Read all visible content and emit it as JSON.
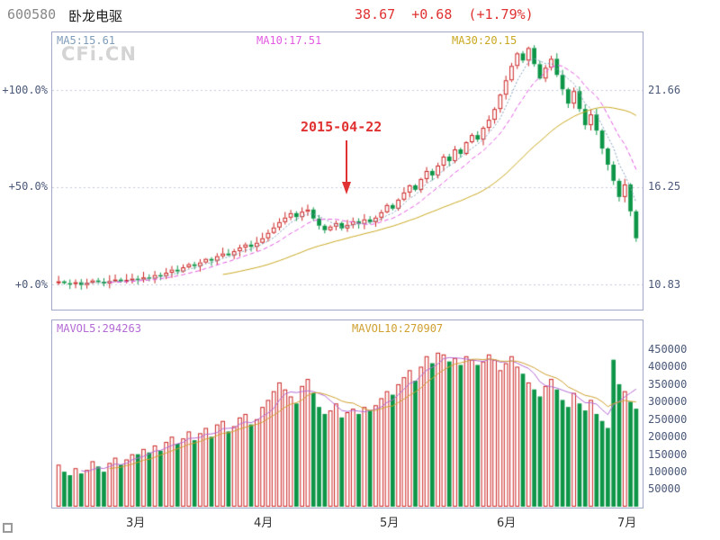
{
  "header": {
    "code": "600580",
    "name": "卧龙电驱",
    "quote": "38.67  +0.68  (+1.79%)"
  },
  "watermark": "CFi.CN",
  "chart_data": {
    "type": "candlestick+volume",
    "price_panel": {
      "ma_labels": [
        {
          "text": "MA5:15.61",
          "color": "#7f9db9"
        },
        {
          "text": "MA10:17.51",
          "color": "#e259e2"
        },
        {
          "text": "MA30:20.15",
          "color": "#c9a820"
        }
      ],
      "left_axis": [
        "+100.0%",
        "+50.0%",
        "+0.0%"
      ],
      "right_axis": [
        "21.66",
        "16.25",
        "10.83"
      ],
      "gridline_prices": [
        21.66,
        16.245,
        10.83
      ],
      "baseline_price": 10.83,
      "annotation": {
        "text": "2015-04-22",
        "day_index": 51,
        "color": "#e03232"
      }
    },
    "volume_panel": {
      "ma_labels": [
        {
          "text": "MAVOL5:294263",
          "color": "#b36ad4"
        },
        {
          "text": "MAVOL10:270907",
          "color": "#cf9f2f"
        }
      ],
      "right_axis": [
        "450000",
        "400000",
        "350000",
        "300000",
        "250000",
        "200000",
        "150000",
        "100000",
        "50000"
      ],
      "axis_top_value": 450000
    },
    "x_axis": {
      "month_labels": [
        "3月",
        "4月",
        "5月",
        "6月",
        "7月"
      ],
      "month_start_indices": [
        14,
        36,
        57,
        77,
        98
      ]
    },
    "candles": {
      "closes": [
        11.0,
        10.9,
        10.85,
        10.95,
        10.8,
        10.92,
        11.05,
        10.98,
        10.88,
        11.02,
        11.1,
        11.0,
        11.08,
        11.15,
        11.1,
        11.22,
        11.15,
        11.35,
        11.3,
        11.48,
        11.65,
        11.55,
        11.78,
        11.95,
        11.85,
        12.05,
        12.25,
        12.15,
        12.4,
        12.55,
        12.45,
        12.68,
        12.88,
        13.05,
        12.92,
        13.15,
        13.4,
        13.7,
        14.0,
        14.3,
        14.55,
        14.8,
        14.58,
        14.88,
        15.0,
        14.5,
        14.1,
        13.85,
        14.05,
        14.25,
        13.95,
        14.15,
        14.35,
        14.2,
        14.45,
        14.3,
        14.55,
        14.85,
        15.25,
        15.05,
        15.55,
        15.95,
        16.35,
        16.1,
        16.7,
        17.15,
        16.9,
        17.45,
        17.95,
        17.7,
        18.35,
        18.1,
        18.75,
        19.15,
        18.9,
        19.55,
        20.0,
        20.6,
        21.4,
        22.2,
        23.0,
        23.7,
        23.3,
        24.0,
        23.1,
        22.3,
        22.9,
        23.4,
        22.5,
        21.7,
        20.9,
        21.6,
        20.6,
        19.7,
        20.3,
        19.4,
        18.4,
        17.5,
        16.6,
        15.7,
        16.4,
        14.9,
        13.4
      ],
      "volumes": [
        120000,
        100000,
        90000,
        110000,
        95000,
        105000,
        130000,
        115000,
        100000,
        125000,
        140000,
        120000,
        135000,
        150000,
        150000,
        165000,
        155000,
        175000,
        160000,
        185000,
        200000,
        180000,
        195000,
        215000,
        190000,
        210000,
        225000,
        200000,
        235000,
        245000,
        215000,
        230000,
        255000,
        265000,
        235000,
        250000,
        285000,
        305000,
        330000,
        355000,
        335000,
        315000,
        295000,
        345000,
        365000,
        325000,
        285000,
        265000,
        275000,
        295000,
        255000,
        270000,
        280000,
        265000,
        285000,
        275000,
        290000,
        310000,
        330000,
        320000,
        350000,
        370000,
        390000,
        360000,
        400000,
        430000,
        410000,
        440000,
        435000,
        415000,
        425000,
        405000,
        430000,
        420000,
        405000,
        415000,
        435000,
        420000,
        390000,
        410000,
        430000,
        400000,
        380000,
        355000,
        335000,
        315000,
        345000,
        365000,
        335000,
        305000,
        285000,
        325000,
        295000,
        275000,
        305000,
        265000,
        245000,
        225000,
        420000,
        350000,
        330000,
        300000,
        280000
      ]
    },
    "colors": {
      "up": "#cc2222",
      "down": "#0e9648",
      "ma5": "#7f9db9",
      "ma10": "#e259e2",
      "ma30": "#c9a820",
      "mavol5": "#b36ad4",
      "mavol10": "#cf9f2f",
      "grid": "#c4c8dc"
    }
  }
}
